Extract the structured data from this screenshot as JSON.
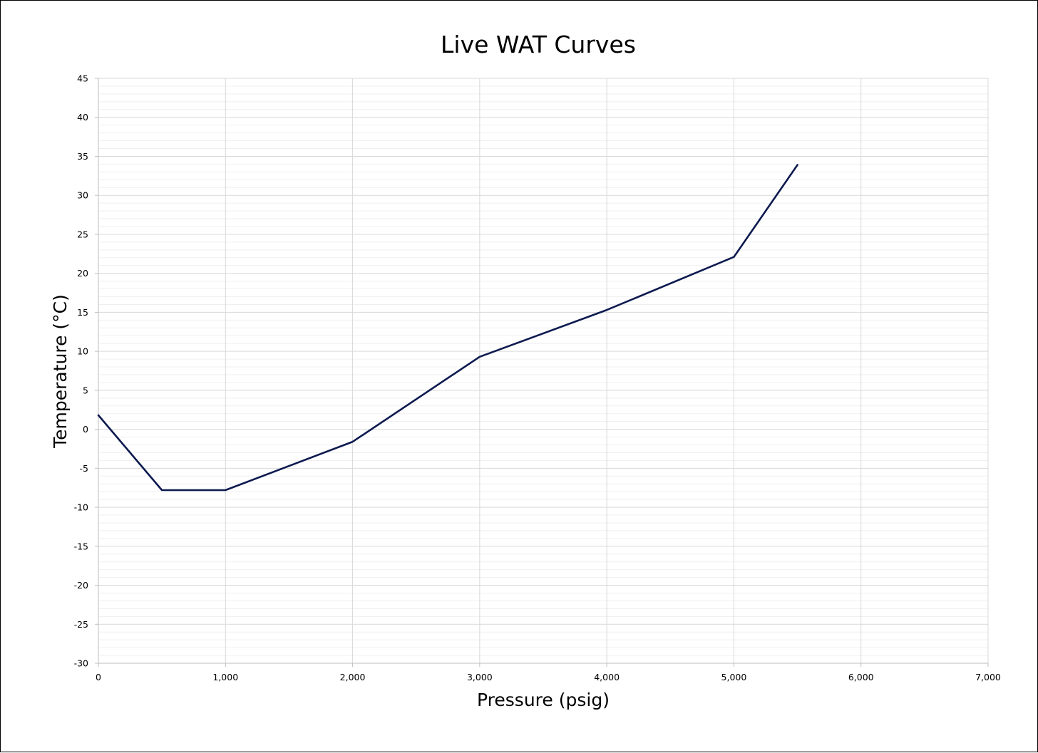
{
  "chart_data": {
    "type": "line",
    "title": "Live WAT Curves",
    "xlabel": "Pressure (psig)",
    "ylabel": "Temperature (°C)",
    "xlim": [
      0,
      7000
    ],
    "ylim": [
      -30,
      45
    ],
    "x_ticks": [
      "0",
      "1,000",
      "2,000",
      "3,000",
      "4,000",
      "5,000",
      "6,000",
      "7,000"
    ],
    "y_ticks": [
      "45",
      "40",
      "35",
      "30",
      "25",
      "20",
      "15",
      "10",
      "5",
      "0",
      "-5",
      "-10",
      "-15",
      "-20",
      "-25",
      "-30"
    ],
    "x_tick_values": [
      0,
      1000,
      2000,
      3000,
      4000,
      5000,
      6000,
      7000
    ],
    "y_tick_values": [
      45,
      40,
      35,
      30,
      25,
      20,
      15,
      10,
      5,
      0,
      -5,
      -10,
      -15,
      -20,
      -25,
      -30
    ],
    "grid": true,
    "legend": "none",
    "series": [
      {
        "color": "#0d1a4f",
        "x": [
          0,
          500,
          1000,
          2000,
          3000,
          4000,
          5000,
          5500
        ],
        "y": [
          1.8,
          -7.8,
          -7.8,
          -1.6,
          9.3,
          15.3,
          22.1,
          33.9
        ]
      }
    ]
  },
  "colors": {
    "line": "#0d1a4f",
    "major_grid": "#d9d9d9",
    "minor_grid": "#efefef",
    "axis": "#bfbfbf",
    "frame": "#000000"
  }
}
